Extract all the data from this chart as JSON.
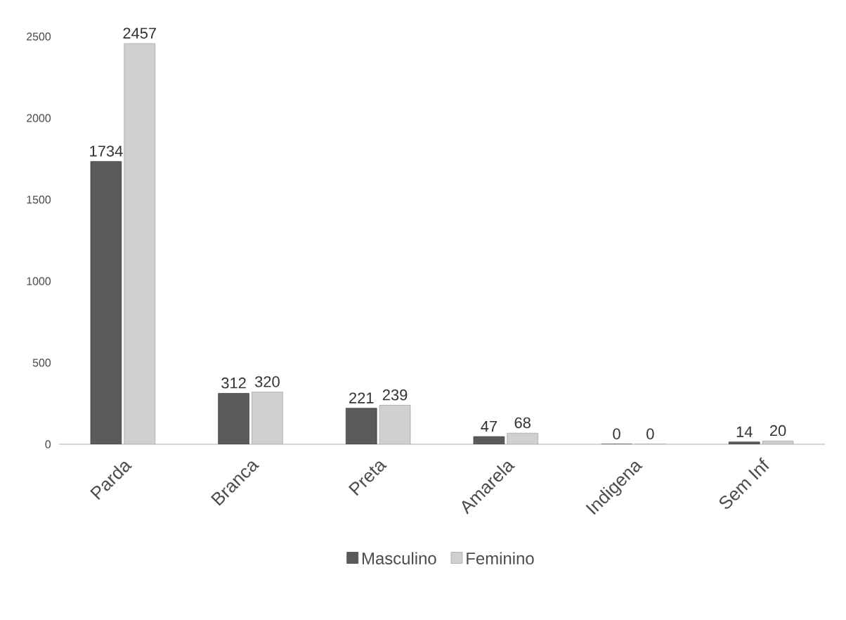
{
  "chart_data": {
    "type": "bar",
    "categories": [
      "Parda",
      "Branca",
      "Preta",
      "Amarela",
      "Indigena",
      "Sem Inf"
    ],
    "series": [
      {
        "name": "Masculino",
        "color": "#5a5a5a",
        "values": [
          1734,
          312,
          221,
          47,
          0,
          14
        ]
      },
      {
        "name": "Feminino",
        "color": "#d0d0d0",
        "values": [
          2457,
          320,
          239,
          68,
          0,
          20
        ]
      }
    ],
    "ylim": [
      0,
      2500
    ],
    "yticks": [
      0,
      500,
      1000,
      1500,
      2000,
      2500
    ],
    "data_labels": true,
    "legend": "bottom",
    "grid": false
  }
}
